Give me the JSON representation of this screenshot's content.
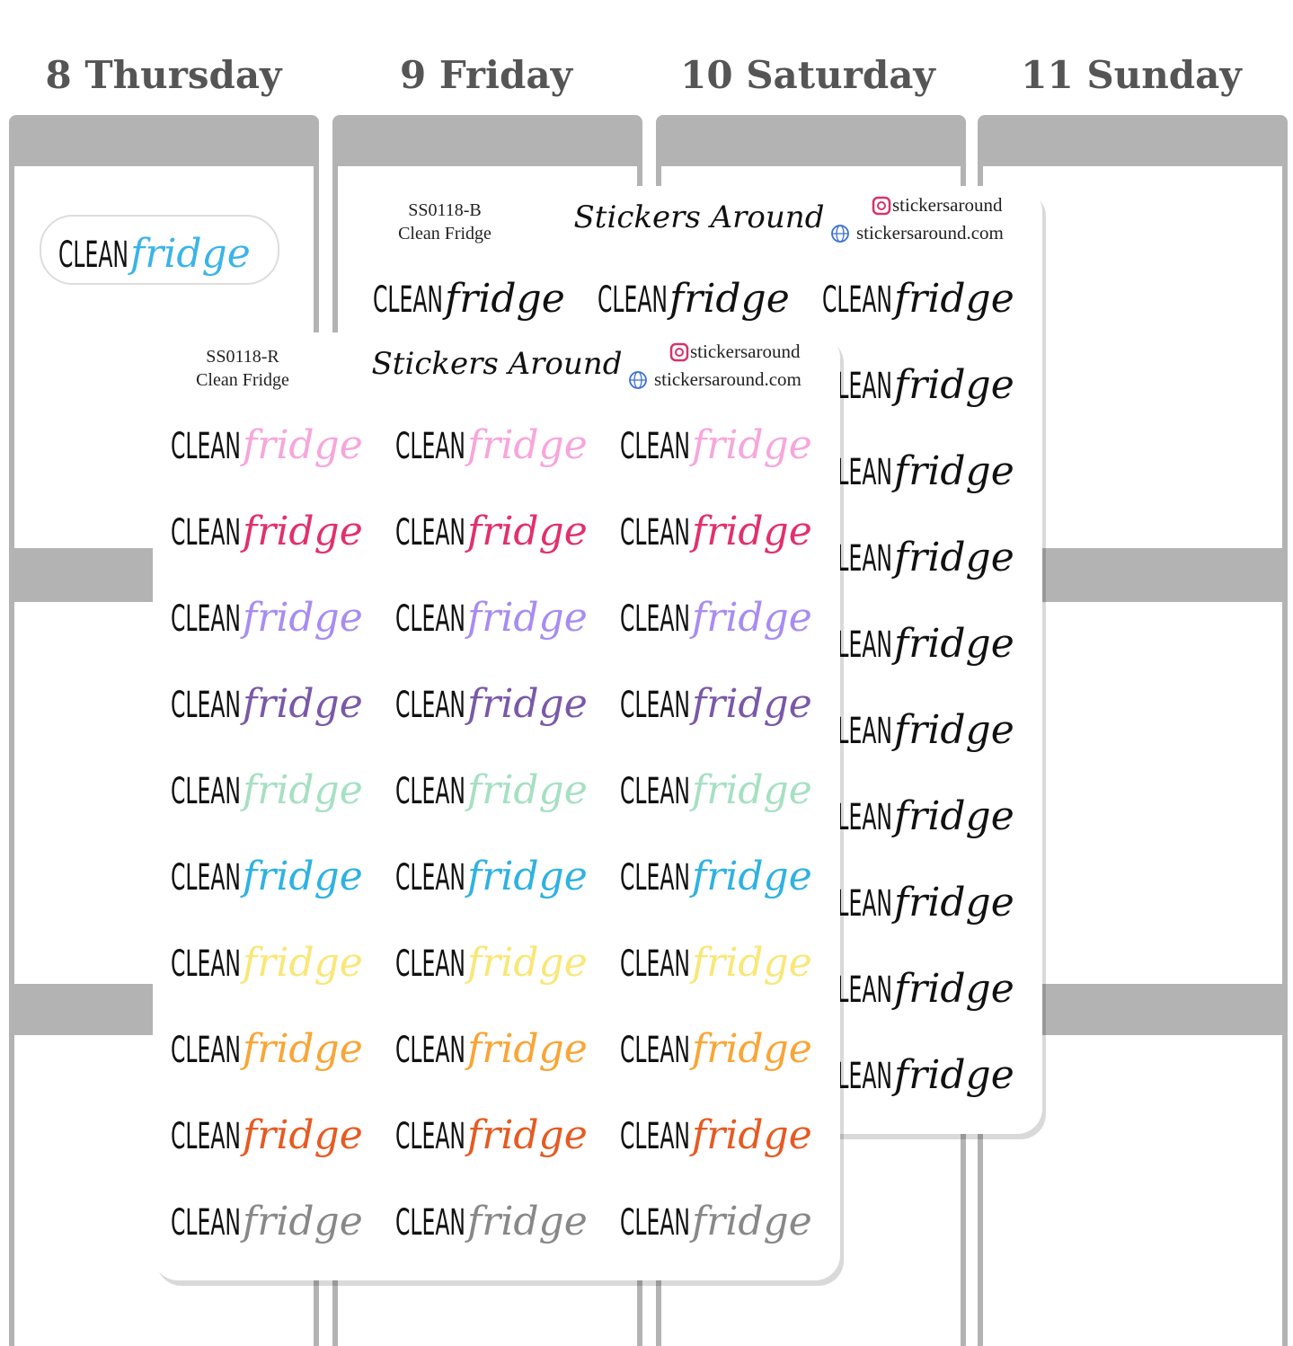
{
  "days": [
    "8 Thursday",
    "9 Friday",
    "10 Saturday",
    "11 Sunday"
  ],
  "loose_sticker": {
    "clean": "CLEAN",
    "fridge": "fridge",
    "color": "#3ab4e8"
  },
  "sheets": [
    {
      "code": "SS0118-B",
      "name": "Clean Fridge",
      "brand": "Stickers Around",
      "instagram": "stickersaround",
      "website": "stickersaround.com",
      "sticker": {
        "clean": "CLEAN",
        "fridge": "fridge"
      },
      "row_colors": [
        "#111111",
        "#111111",
        "#111111",
        "#111111",
        "#111111",
        "#111111",
        "#111111",
        "#111111",
        "#111111",
        "#111111"
      ]
    },
    {
      "code": "SS0118-R",
      "name": "Clean Fridge",
      "brand": "Stickers Around",
      "instagram": "stickersaround",
      "website": "stickersaround.com",
      "sticker": {
        "clean": "CLEAN",
        "fridge": "fridge"
      },
      "row_colors": [
        "#f7a6dc",
        "#e2306c",
        "#a88cf2",
        "#7a58a8",
        "#a6e0c2",
        "#2eb2e2",
        "#f9e777",
        "#f9a535",
        "#e65a22",
        "#888888"
      ]
    }
  ]
}
